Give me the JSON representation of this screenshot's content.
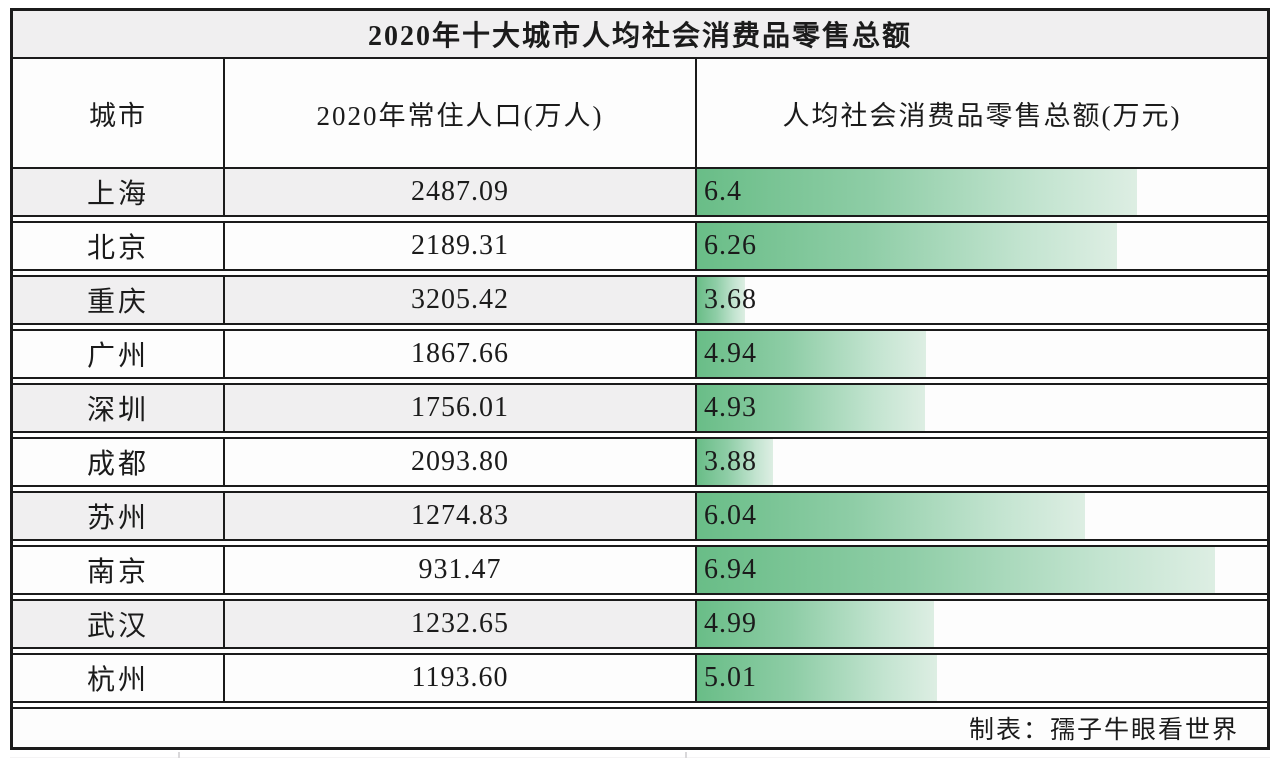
{
  "title": "2020年十大城市人均社会消费品零售总额",
  "footer": {
    "credit": "制表：孺子牛眼看世界"
  },
  "columns": {
    "city": "城市",
    "population": "2020年常住人口(万人)",
    "per_capita": "人均社会消费品零售总额(万元)"
  },
  "chart_data": {
    "type": "bar",
    "title": "2020年十大城市人均社会消费品零售总额",
    "xlabel": "人均社会消费品零售总额(万元)",
    "legend_position": "none",
    "grid": false,
    "bar_domain": [
      3.35,
      7.3
    ],
    "bar_color_start": "#69bd87",
    "bar_color_end": "#ddeee3",
    "categories": [
      "上海",
      "北京",
      "重庆",
      "广州",
      "深圳",
      "成都",
      "苏州",
      "南京",
      "武汉",
      "杭州"
    ],
    "series": [
      {
        "name": "2020年常住人口(万人)",
        "values": [
          2487.09,
          2189.31,
          3205.42,
          1867.66,
          1756.01,
          2093.8,
          1274.83,
          931.47,
          1232.65,
          1193.6
        ]
      },
      {
        "name": "人均社会消费品零售总额(万元)",
        "values": [
          6.4,
          6.26,
          3.68,
          4.94,
          4.93,
          3.88,
          6.04,
          6.94,
          4.99,
          5.01
        ]
      }
    ],
    "rows": [
      {
        "city": "上海",
        "population": "2487.09",
        "per_capita": "6.4",
        "per_capita_value": 6.4
      },
      {
        "city": "北京",
        "population": "2189.31",
        "per_capita": "6.26",
        "per_capita_value": 6.26
      },
      {
        "city": "重庆",
        "population": "3205.42",
        "per_capita": "3.68",
        "per_capita_value": 3.68
      },
      {
        "city": "广州",
        "population": "1867.66",
        "per_capita": "4.94",
        "per_capita_value": 4.94
      },
      {
        "city": "深圳",
        "population": "1756.01",
        "per_capita": "4.93",
        "per_capita_value": 4.93
      },
      {
        "city": "成都",
        "population": "2093.80",
        "per_capita": "3.88",
        "per_capita_value": 3.88
      },
      {
        "city": "苏州",
        "population": "1274.83",
        "per_capita": "6.04",
        "per_capita_value": 6.04
      },
      {
        "city": "南京",
        "population": "931.47",
        "per_capita": "6.94",
        "per_capita_value": 6.94
      },
      {
        "city": "武汉",
        "population": "1232.65",
        "per_capita": "4.99",
        "per_capita_value": 4.99
      },
      {
        "city": "杭州",
        "population": "1193.60",
        "per_capita": "5.01",
        "per_capita_value": 5.01
      }
    ]
  },
  "colors": {
    "border": "#1b1b1b",
    "stripe_bg": "#f0eff0",
    "cell_bg": "#fdfdfd",
    "bar_gradient_start": "#69bd87",
    "bar_gradient_end": "#ddeee3"
  }
}
